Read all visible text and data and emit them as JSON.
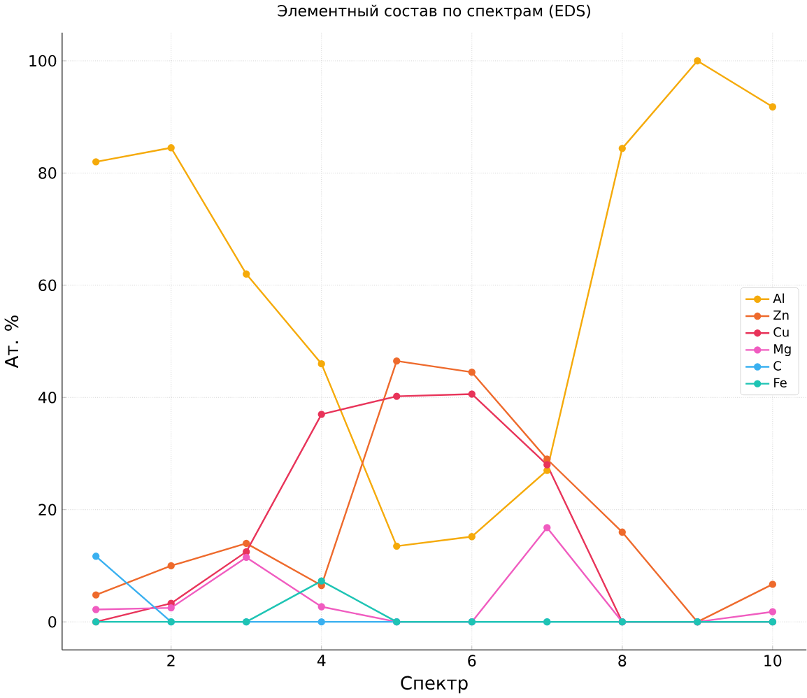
{
  "chart_data": {
    "type": "line",
    "title": "Элементный состав по спектрам (EDS)",
    "xlabel": "Спектр",
    "ylabel": "Ат. %",
    "x": [
      1,
      2,
      3,
      4,
      5,
      6,
      7,
      8,
      9,
      10
    ],
    "series": [
      {
        "name": "Al",
        "color": "#f5aa0a",
        "values": [
          82,
          84.5,
          62,
          46,
          13.5,
          15.2,
          27,
          84.4,
          100,
          91.8
        ]
      },
      {
        "name": "Zn",
        "color": "#ee6a2c",
        "values": [
          4.8,
          10,
          14,
          6.5,
          46.5,
          44.5,
          29,
          16,
          0,
          6.7
        ]
      },
      {
        "name": "Cu",
        "color": "#e8345a",
        "values": [
          0,
          3.3,
          12.5,
          37,
          40.2,
          40.6,
          28,
          0,
          0,
          0
        ]
      },
      {
        "name": "Mg",
        "color": "#f05cc0",
        "values": [
          2.2,
          2.5,
          11.5,
          2.7,
          0,
          0,
          16.8,
          0,
          0,
          1.8
        ]
      },
      {
        "name": "C",
        "color": "#3ab0f0",
        "values": [
          11.7,
          0,
          0,
          0,
          0,
          0,
          0,
          0,
          0,
          0
        ]
      },
      {
        "name": "Fe",
        "color": "#1ec4b4",
        "values": [
          0,
          0,
          0,
          7.3,
          0,
          0,
          0,
          0,
          0,
          0
        ]
      }
    ],
    "xlim": [
      0.55,
      10.45
    ],
    "ylim": [
      -5,
      105
    ],
    "xticks": [
      2,
      4,
      6,
      8,
      10
    ],
    "yticks": [
      0,
      20,
      40,
      60,
      80,
      100
    ],
    "grid": true,
    "legend": "right",
    "marker": "circle",
    "line_style": "solid"
  }
}
